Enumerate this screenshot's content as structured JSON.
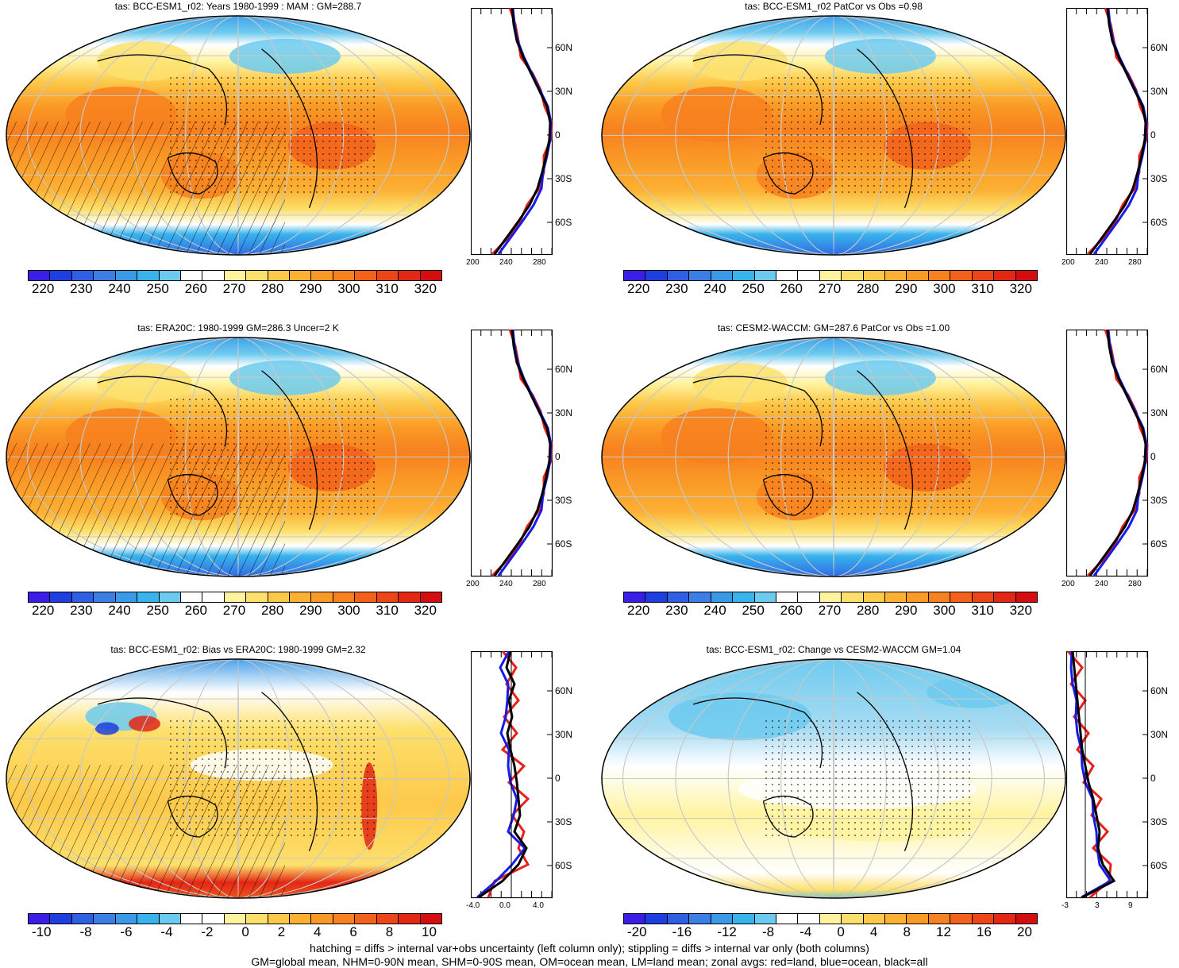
{
  "panels": [
    {
      "id": "p1",
      "title": "tas: BCC-ESM1_r02: Years 1980-1999 : MAM : GM=288.7",
      "type": "abs"
    },
    {
      "id": "p2",
      "title": "tas: BCC-ESM1_r02 PatCor vs Obs =0.98",
      "type": "abs"
    },
    {
      "id": "p3",
      "title": "tas: ERA20C: 1980-1999 GM=286.3 Uncer=2 K",
      "type": "abs"
    },
    {
      "id": "p4",
      "title": "tas: CESM2-WACCM: GM=287.6 PatCor vs Obs =1.00",
      "type": "abs"
    },
    {
      "id": "p5",
      "title": "tas: BCC-ESM1_r02: Bias vs ERA20C: 1980-1999 GM=2.32",
      "type": "bias"
    },
    {
      "id": "p6",
      "title": "tas: BCC-ESM1_r02: Change vs CESM2-WACCM GM=1.04",
      "type": "change"
    }
  ],
  "colorbars": {
    "abs_labels": [
      "220",
      "230",
      "240",
      "250",
      "260",
      "270",
      "280",
      "290",
      "300",
      "310",
      "320"
    ],
    "bias_labels": [
      "-10",
      "-8",
      "-6",
      "-4",
      "-2",
      "0",
      "2",
      "4",
      "6",
      "8",
      "10"
    ],
    "change_labels": [
      "-20",
      "-16",
      "-12",
      "-8",
      "-4",
      "0",
      "4",
      "8",
      "12",
      "16",
      "20"
    ],
    "colors": [
      "#3a1ee6",
      "#1f3ee0",
      "#2f5fe3",
      "#3d7de6",
      "#3b9ae8",
      "#38b3ec",
      "#6ccaef",
      "#ffffff",
      "#ffffff",
      "#fff3a0",
      "#fde06c",
      "#fdc94a",
      "#fcb034",
      "#fa9a26",
      "#f7801f",
      "#f2621b",
      "#ec4518",
      "#e32715",
      "#d40d10"
    ]
  },
  "zonal": {
    "unit": "K",
    "lat_labels": [
      "60N",
      "30N",
      "0",
      "30S",
      "60S"
    ],
    "abs_xticks": [
      "200",
      "240",
      "280"
    ],
    "bias_xticks": [
      "-4.0",
      "0.0",
      "4.0"
    ],
    "change_xticks": [
      "-3",
      "3",
      "9"
    ]
  },
  "footer": {
    "line1": "hatching = diffs > internal var+obs uncertainty (left column only); stippling = diffs > internal var only (both columns)",
    "line2": "GM=global mean, NHM=0-90N mean, SHM=0-90S mean, OM=ocean mean, LM=land mean; zonal avgs: red=land, blue=ocean, black=all"
  },
  "line_colors": {
    "land": "#e8201a",
    "ocean": "#1a1ae8",
    "all": "#000000"
  }
}
